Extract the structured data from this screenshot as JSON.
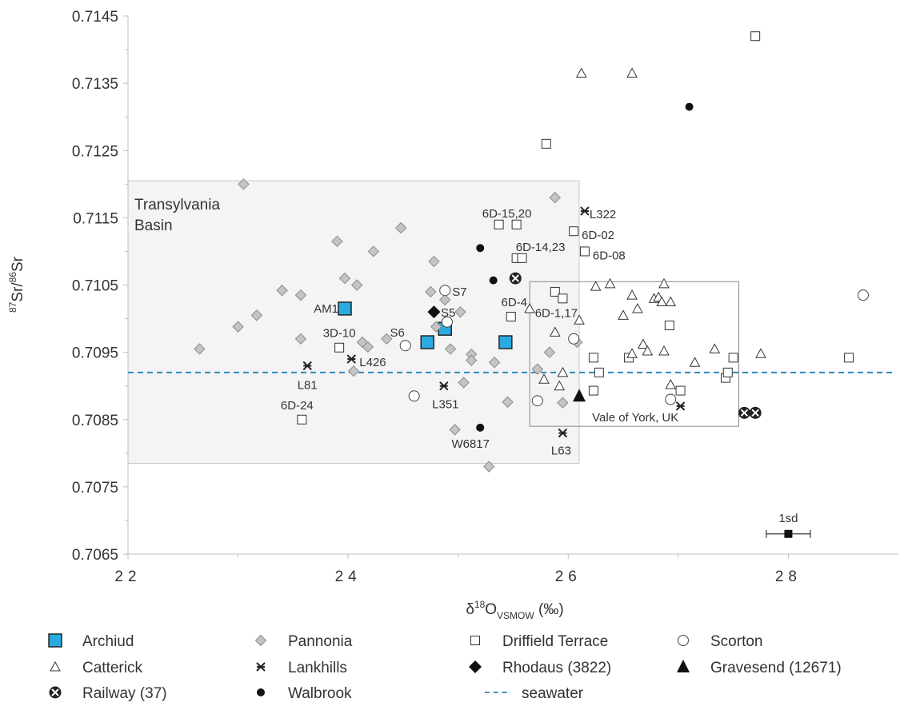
{
  "chart_data": {
    "type": "scatter",
    "xlabel": "δ18OVSMOW (‰)",
    "xlabel_parts": {
      "delta": "δ",
      "sup": "18",
      "main": "O",
      "sub": "VSMOW",
      "tail": " (‰)"
    },
    "ylabel": "87Sr/86Sr",
    "ylabel_parts": {
      "sup1": "87",
      "mid": "Sr/",
      "sup2": "86",
      "end": "Sr"
    },
    "xlim": [
      22,
      29
    ],
    "ylim": [
      0.7065,
      0.7145
    ],
    "xticks": [
      22,
      24,
      26,
      28
    ],
    "xtick_labels": [
      "22",
      "24",
      "26",
      "28"
    ],
    "yticks": [
      0.7065,
      0.7075,
      0.7085,
      0.7095,
      0.7105,
      0.7115,
      0.7125,
      0.7135,
      0.7145
    ],
    "ytick_labels": [
      "0.7065",
      "0.7075",
      "0.7085",
      "0.7095",
      "0.7105",
      "0.7115",
      "0.7125",
      "0.7135",
      "0.7145"
    ],
    "grid": false,
    "legend_position": "bottom",
    "seawater": {
      "name": "seawater",
      "y": 0.7092,
      "color": "#2e86c1"
    },
    "regions": [
      {
        "label_lines": [
          "Transylvania",
          "Basin"
        ],
        "x": [
          22.0,
          26.1
        ],
        "y": [
          0.70785,
          0.71205
        ]
      },
      {
        "label_lines": [
          "Vale of York, UK"
        ],
        "x": [
          25.65,
          27.55
        ],
        "y": [
          0.7084,
          0.71055
        ]
      }
    ],
    "series": [
      {
        "name": "Archiud",
        "marker": "square-blue",
        "points": [
          [
            23.97,
            0.71015
          ],
          [
            24.72,
            0.70965
          ],
          [
            24.88,
            0.70985
          ],
          [
            25.43,
            0.70965
          ]
        ]
      },
      {
        "name": "Pannonia",
        "marker": "diamond",
        "points": [
          [
            22.65,
            0.70955
          ],
          [
            23.05,
            0.712
          ],
          [
            23.0,
            0.70988
          ],
          [
            23.17,
            0.71005
          ],
          [
            23.4,
            0.71042
          ],
          [
            23.57,
            0.71035
          ],
          [
            23.57,
            0.7097
          ],
          [
            23.9,
            0.71115
          ],
          [
            23.97,
            0.7106
          ],
          [
            24.08,
            0.7105
          ],
          [
            24.13,
            0.70965
          ],
          [
            24.18,
            0.70958
          ],
          [
            24.23,
            0.711
          ],
          [
            24.05,
            0.70922
          ],
          [
            24.35,
            0.7097
          ],
          [
            24.48,
            0.71135
          ],
          [
            24.78,
            0.71085
          ],
          [
            24.75,
            0.7104
          ],
          [
            24.8,
            0.70988
          ],
          [
            24.88,
            0.71028
          ],
          [
            24.93,
            0.70955
          ],
          [
            25.02,
            0.7101
          ],
          [
            24.97,
            0.70835
          ],
          [
            25.05,
            0.70905
          ],
          [
            25.12,
            0.70947
          ],
          [
            25.12,
            0.70938
          ],
          [
            25.33,
            0.70935
          ],
          [
            25.45,
            0.70876
          ],
          [
            25.83,
            0.7095
          ],
          [
            25.88,
            0.7118
          ],
          [
            25.95,
            0.70875
          ],
          [
            26.08,
            0.70965
          ],
          [
            25.28,
            0.7078
          ],
          [
            25.72,
            0.70925
          ]
        ]
      },
      {
        "name": "Driffield Terrace",
        "marker": "square",
        "points": [
          [
            23.92,
            0.70957
          ],
          [
            23.58,
            0.7085
          ],
          [
            25.37,
            0.7114
          ],
          [
            25.53,
            0.7114
          ],
          [
            25.53,
            0.7109
          ],
          [
            25.58,
            0.7109
          ],
          [
            25.48,
            0.71003
          ],
          [
            25.8,
            0.7126
          ],
          [
            25.88,
            0.7104
          ],
          [
            25.95,
            0.7103
          ],
          [
            26.05,
            0.7113
          ],
          [
            26.15,
            0.711
          ],
          [
            26.23,
            0.70942
          ],
          [
            26.23,
            0.70893
          ],
          [
            26.28,
            0.7092
          ],
          [
            26.55,
            0.70942
          ],
          [
            26.92,
            0.7099
          ],
          [
            27.02,
            0.70893
          ],
          [
            27.43,
            0.70912
          ],
          [
            27.45,
            0.7092
          ],
          [
            27.5,
            0.70942
          ],
          [
            28.55,
            0.70942
          ],
          [
            27.7,
            0.7142
          ]
        ]
      },
      {
        "name": "Scorton",
        "marker": "circle",
        "points": [
          [
            24.52,
            0.7096
          ],
          [
            24.6,
            0.70885
          ],
          [
            24.88,
            0.71042
          ],
          [
            24.9,
            0.70995
          ],
          [
            25.72,
            0.70878
          ],
          [
            26.05,
            0.7097
          ],
          [
            26.93,
            0.7088
          ],
          [
            28.68,
            0.71035
          ]
        ]
      },
      {
        "name": "Catterick",
        "marker": "triangle",
        "points": [
          [
            25.65,
            0.71015
          ],
          [
            25.78,
            0.7091
          ],
          [
            25.88,
            0.7098
          ],
          [
            25.92,
            0.709
          ],
          [
            25.95,
            0.7092
          ],
          [
            26.1,
            0.70998
          ],
          [
            26.12,
            0.71365
          ],
          [
            26.25,
            0.71048
          ],
          [
            26.38,
            0.71052
          ],
          [
            26.5,
            0.71005
          ],
          [
            26.58,
            0.71035
          ],
          [
            26.58,
            0.70948
          ],
          [
            26.63,
            0.71015
          ],
          [
            26.68,
            0.70962
          ],
          [
            26.72,
            0.70952
          ],
          [
            26.78,
            0.7103
          ],
          [
            26.82,
            0.71032
          ],
          [
            26.85,
            0.71025
          ],
          [
            26.87,
            0.71052
          ],
          [
            26.87,
            0.70952
          ],
          [
            26.93,
            0.71025
          ],
          [
            26.93,
            0.70902
          ],
          [
            26.58,
            0.71365
          ],
          [
            27.15,
            0.70935
          ],
          [
            27.33,
            0.70955
          ],
          [
            27.75,
            0.70948
          ]
        ]
      },
      {
        "name": "Lankhills",
        "marker": "asterisk",
        "points": [
          [
            23.63,
            0.7093
          ],
          [
            24.03,
            0.7094
          ],
          [
            24.87,
            0.709
          ],
          [
            25.95,
            0.7083
          ],
          [
            26.15,
            0.7116
          ],
          [
            27.02,
            0.7087
          ]
        ]
      },
      {
        "name": "Rhodaus (3822)",
        "marker": "diamond-filled",
        "points": [
          [
            24.78,
            0.7101
          ]
        ]
      },
      {
        "name": "Gravesend (12671)",
        "marker": "triangle-filled",
        "points": [
          [
            26.1,
            0.70885
          ]
        ]
      },
      {
        "name": "Railway (37)",
        "marker": "circle-x",
        "points": [
          [
            25.52,
            0.7106
          ],
          [
            27.6,
            0.7086
          ],
          [
            27.7,
            0.7086
          ]
        ]
      },
      {
        "name": "Walbrook",
        "marker": "dot",
        "points": [
          [
            25.2,
            0.71105
          ],
          [
            25.2,
            0.70838
          ],
          [
            25.32,
            0.71057
          ],
          [
            27.1,
            0.71315
          ]
        ]
      },
      {
        "name": "seawater",
        "marker": "dashed-line",
        "points": []
      }
    ],
    "annotations": [
      {
        "text": "AM1",
        "x": 23.97,
        "y": 0.71015,
        "anchor": "end",
        "dx": -8,
        "dy": 0
      },
      {
        "text": "3D-10",
        "x": 23.92,
        "y": 0.70957,
        "anchor": "middle",
        "dx": 0,
        "dy": -18
      },
      {
        "text": "L426",
        "x": 24.03,
        "y": 0.7094,
        "anchor": "start",
        "dx": 10,
        "dy": 4
      },
      {
        "text": "L81",
        "x": 23.63,
        "y": 0.7093,
        "anchor": "middle",
        "dx": 0,
        "dy": 24
      },
      {
        "text": "6D-24",
        "x": 23.58,
        "y": 0.7085,
        "anchor": "middle",
        "dx": -6,
        "dy": -18
      },
      {
        "text": "S7",
        "x": 24.88,
        "y": 0.71042,
        "anchor": "start",
        "dx": 9,
        "dy": 2
      },
      {
        "text": "S5",
        "x": 24.9,
        "y": 0.70995,
        "anchor": "start",
        "dx": -8,
        "dy": -12
      },
      {
        "text": "S6",
        "x": 24.52,
        "y": 0.7096,
        "anchor": "middle",
        "dx": -10,
        "dy": -16
      },
      {
        "text": "L351",
        "x": 24.87,
        "y": 0.709,
        "anchor": "middle",
        "dx": 2,
        "dy": 23
      },
      {
        "text": "W6817",
        "x": 25.2,
        "y": 0.70838,
        "anchor": "middle",
        "dx": -12,
        "dy": 20
      },
      {
        "text": "L63",
        "x": 25.95,
        "y": 0.7083,
        "anchor": "middle",
        "dx": -2,
        "dy": 22
      },
      {
        "text": "6D-15,20",
        "x": 25.37,
        "y": 0.7114,
        "anchor": "middle",
        "dx": 10,
        "dy": -14
      },
      {
        "text": "6D-14,23",
        "x": 25.53,
        "y": 0.7109,
        "anchor": "middle",
        "dx": 30,
        "dy": -14
      },
      {
        "text": "L322",
        "x": 26.15,
        "y": 0.7116,
        "anchor": "start",
        "dx": 6,
        "dy": 4
      },
      {
        "text": "6D-02",
        "x": 26.05,
        "y": 0.7113,
        "anchor": "start",
        "dx": 10,
        "dy": 5
      },
      {
        "text": "6D-08",
        "x": 26.15,
        "y": 0.711,
        "anchor": "start",
        "dx": 10,
        "dy": 5
      },
      {
        "text": "6D-4",
        "x": 25.48,
        "y": 0.71003,
        "anchor": "middle",
        "dx": 4,
        "dy": -18
      },
      {
        "text": "6D-1,17",
        "x": 25.95,
        "y": 0.7103,
        "anchor": "middle",
        "dx": -8,
        "dy": 18
      },
      {
        "text": "1sd",
        "x": 28.0,
        "y": 0.7068,
        "anchor": "middle",
        "dx": 0,
        "dy": -20
      }
    ],
    "error_bar": {
      "label": "1sd",
      "x": 28.0,
      "y": 0.7068,
      "half_width": 0.2
    }
  }
}
